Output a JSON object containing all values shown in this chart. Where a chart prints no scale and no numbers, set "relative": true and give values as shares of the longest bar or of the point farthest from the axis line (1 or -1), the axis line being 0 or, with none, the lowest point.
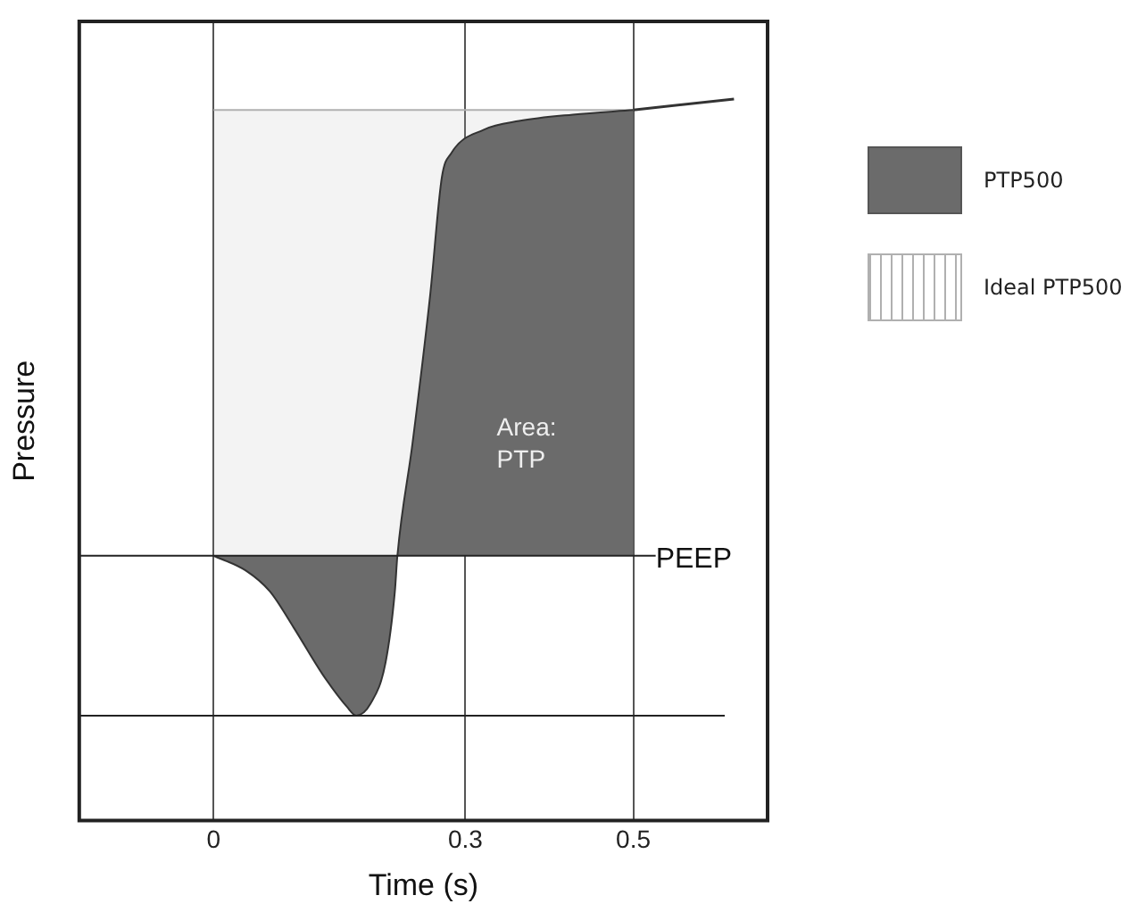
{
  "chart_data": {
    "type": "area",
    "xlabel": "Time (s)",
    "ylabel": "Pressure",
    "relative": true,
    "xlim": [
      -0.16,
      0.66
    ],
    "xticks": [
      0,
      0.3,
      0.5
    ],
    "grid": "x",
    "legend": "right",
    "series": [
      {
        "name": "PTP500",
        "color": "#6b6b6b",
        "x": [
          0,
          0.038,
          0.067,
          0.095,
          0.13,
          0.159,
          0.17,
          0.187,
          0.205,
          0.216,
          0.219,
          0.237,
          0.258,
          0.272,
          0.283,
          0.322,
          0.364,
          0.428,
          0.5
        ],
        "values": [
          0,
          -0.032,
          -0.078,
          -0.156,
          -0.26,
          -0.331,
          -0.35,
          -0.324,
          -0.233,
          -0.078,
          0,
          0.246,
          0.57,
          0.829,
          0.881,
          0.933,
          0.952,
          0.966,
          0.976
        ]
      },
      {
        "type": "line",
        "color": "#333333",
        "x": [
          0.5,
          0.62
        ],
        "values": [
          0.976,
          1
        ]
      },
      {
        "name": "Ideal PTP500",
        "color": "#b0b0b0",
        "x": [
          0,
          0.5
        ],
        "values": [
          0.976,
          0.976
        ]
      }
    ],
    "ref_lines": [
      {
        "axis": "y",
        "value": 0,
        "label": "PEEP"
      },
      {
        "axis": "y",
        "value": -0.35
      }
    ],
    "annotations": [
      "Area:\nPTP"
    ]
  }
}
